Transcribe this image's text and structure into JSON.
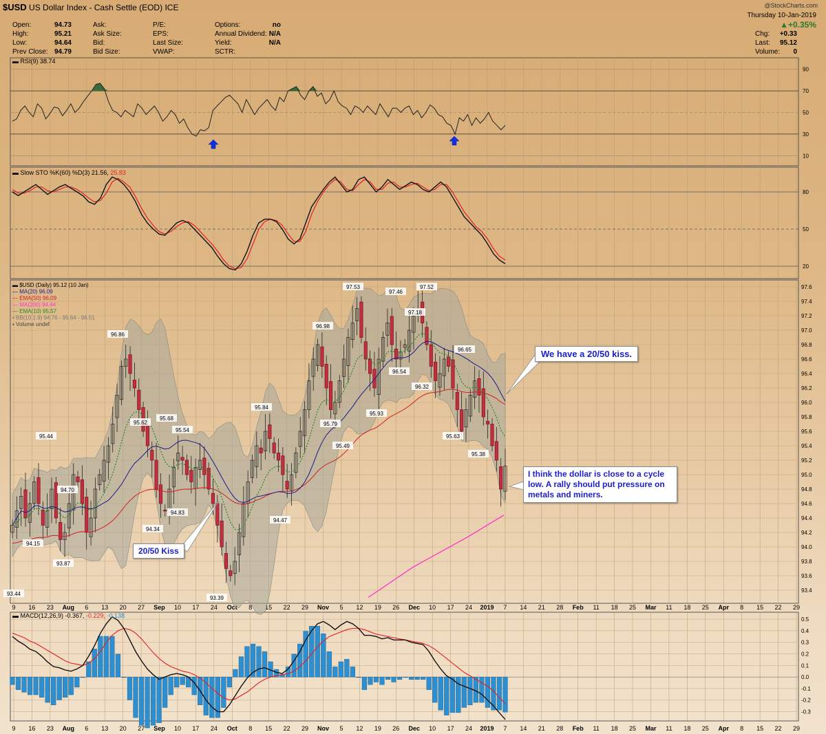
{
  "header": {
    "symbol": "$USD",
    "name": "US Dollar Index - Cash Settle (EOD)",
    "exchange": "ICE",
    "date": "Thursday  10-Jan-2019",
    "watermark": "@StockCharts.com",
    "change_pct": "▲+0.35%",
    "quote": [
      {
        "label": "Open:",
        "value": "94.73"
      },
      {
        "label": "High:",
        "value": "95.21"
      },
      {
        "label": "Low:",
        "value": "94.64"
      },
      {
        "label": "Prev Close:",
        "value": "94.79"
      }
    ],
    "col2": [
      "Ask:",
      "Ask Size:",
      "Bid:",
      "Bid Size:"
    ],
    "col3": [
      "P/E:",
      "EPS:",
      "Last Size:",
      "VWAP:"
    ],
    "col4": [
      {
        "label": "Options:",
        "value": "no"
      },
      {
        "label": "Annual Dividend:",
        "value": "N/A"
      },
      {
        "label": "Yield:",
        "value": "N/A"
      },
      {
        "label": "SCTR:",
        "value": ""
      }
    ],
    "right": [
      {
        "label": "Chg:",
        "value": "+0.33"
      },
      {
        "label": "Last:",
        "value": "95.12"
      },
      {
        "label": "Volume:",
        "value": "0"
      }
    ]
  },
  "rsi": {
    "legend": "RSI(9) 38.74",
    "ticks": [
      "90",
      "70",
      "50",
      "30",
      "10"
    ]
  },
  "sto": {
    "legend_main": "Slow STO %K(60) %D(3) 21.56,",
    "legend_red": "25.83",
    "ticks": [
      "80",
      "50",
      "20"
    ]
  },
  "price": {
    "legend": [
      {
        "text": "$USD (Daily) 95.12 (10 Jan)",
        "color": "#000000"
      },
      {
        "text": "MA(20) 96.09",
        "color": "#1a1a8a"
      },
      {
        "text": "EMA(50) 96.09",
        "color": "#cc2222"
      },
      {
        "text": "MA(200) 94.44",
        "color": "#ff33cc"
      },
      {
        "text": "EMA(10) 95.57",
        "color": "#228822"
      },
      {
        "text": "BB(10,1.9) 94.76 - 95.64 - 96.51",
        "color": "#777777"
      },
      {
        "text": "Volume undef",
        "color": "#444444"
      }
    ],
    "ticks": [
      "97.6",
      "97.4",
      "97.2",
      "97.0",
      "96.8",
      "96.6",
      "96.4",
      "96.2",
      "96.0",
      "95.8",
      "95.6",
      "95.4",
      "95.2",
      "95.0",
      "94.8",
      "94.6",
      "94.4",
      "94.2",
      "94.0",
      "93.8",
      "93.6",
      "93.4"
    ],
    "labels": [
      "93.44",
      "94.15",
      "93.87",
      "94.70",
      "95.44",
      "96.86",
      "95.62",
      "94.34",
      "95.68",
      "94.83",
      "95.54",
      "93.39",
      "95.84",
      "94.47",
      "96.98",
      "95.79",
      "95.49",
      "97.53",
      "95.93",
      "97.46",
      "96.54",
      "97.18",
      "97.52",
      "96.32",
      "95.63",
      "96.65",
      "95.38"
    ]
  },
  "macd": {
    "legend_main": "MACD(12,26,9) -0.367,",
    "legend_red": "-0.229,",
    "legend_blue": "-0.138",
    "ticks": [
      "0.5",
      "0.4",
      "0.3",
      "0.2",
      "0.1",
      "0.0",
      "-0.1",
      "-0.2",
      "-0.3"
    ]
  },
  "xaxis": [
    "9",
    "16",
    "23",
    "Aug",
    "6",
    "13",
    "20",
    "27",
    "Sep",
    "10",
    "17",
    "24",
    "Oct",
    "8",
    "15",
    "22",
    "29",
    "Nov",
    "5",
    "12",
    "19",
    "26",
    "Dec",
    "10",
    "17",
    "24",
    "2019",
    "7",
    "14",
    "21",
    "28",
    "Feb",
    "11",
    "18",
    "25",
    "Mar",
    "11",
    "18",
    "25",
    "Apr",
    "8",
    "15",
    "22",
    "29"
  ],
  "annotations": {
    "kiss_label": "20/50 Kiss",
    "kiss_2050": "We have a 20/50 kiss.",
    "cycle_note": "I think the dollar is close to a cycle low. A rally should put pressure on metals and miners."
  },
  "colors": {
    "ma20": "#1a1a8a",
    "ema50": "#cc2222",
    "ma200": "#ff33cc",
    "ema10": "#228822",
    "bb_fill": "#a8a89a",
    "down_candle": "#c23040",
    "rsi_fill": "#3a6a3a",
    "arrow": "#1030e0",
    "macd_hist": "#2d8fd0",
    "annotation_text": "#1c20c8"
  },
  "chart_data": [
    {
      "type": "line",
      "name": "RSI(9)",
      "y_ticks": [
        90,
        70,
        50,
        30,
        10
      ],
      "ylim": [
        0,
        100
      ],
      "values": [
        42,
        44,
        52,
        56,
        50,
        46,
        58,
        54,
        44,
        49,
        55,
        54,
        47,
        52,
        58,
        50,
        54,
        60,
        65,
        70,
        76,
        77,
        72,
        60,
        52,
        50,
        46,
        52,
        49,
        46,
        58,
        54,
        48,
        52,
        56,
        50,
        42,
        46,
        52,
        48,
        40,
        44,
        36,
        30,
        28,
        34,
        33,
        36,
        52,
        56,
        60,
        64,
        66,
        62,
        58,
        50,
        62,
        55,
        48,
        54,
        58,
        62,
        56,
        52,
        64,
        60,
        70,
        72,
        74,
        66,
        62,
        70,
        74,
        65,
        68,
        58,
        62,
        70,
        60,
        56,
        54,
        48,
        56,
        54,
        50,
        56,
        52,
        48,
        58,
        52,
        46,
        54,
        54,
        50,
        54,
        56,
        48,
        52,
        45,
        50,
        57,
        54,
        48,
        46,
        40,
        38,
        30,
        45,
        42,
        48,
        38,
        45,
        40,
        44,
        50,
        42,
        38,
        34,
        38
      ]
    },
    {
      "type": "line",
      "name": "Slow STO %K(60) %D(3)",
      "y_ticks": [
        80,
        50,
        20
      ],
      "ylim": [
        10,
        100
      ],
      "series": [
        {
          "name": "%K",
          "values": [
            80,
            77,
            80,
            83,
            86,
            82,
            78,
            81,
            84,
            86,
            83,
            80,
            77,
            72,
            70,
            75,
            86,
            92,
            90,
            86,
            80,
            72,
            62,
            55,
            50,
            46,
            45,
            50,
            55,
            57,
            55,
            50,
            45,
            40,
            35,
            28,
            22,
            18,
            17,
            22,
            32,
            45,
            55,
            58,
            58,
            56,
            50,
            42,
            38,
            42,
            55,
            68,
            75,
            82,
            88,
            92,
            86,
            80,
            82,
            90,
            92,
            86,
            80,
            84,
            90,
            86,
            82,
            85,
            88,
            86,
            82,
            80,
            84,
            88,
            84,
            76,
            68,
            60,
            55,
            50,
            45,
            38,
            30,
            25,
            22
          ]
        },
        {
          "name": "%D",
          "values": [
            82,
            79,
            79,
            81,
            84,
            84,
            81,
            80,
            82,
            84,
            84,
            82,
            79,
            75,
            72,
            73,
            79,
            88,
            91,
            88,
            84,
            76,
            67,
            59,
            53,
            48,
            46,
            48,
            52,
            55,
            56,
            53,
            48,
            43,
            38,
            32,
            25,
            20,
            18,
            19,
            26,
            38,
            50,
            56,
            58,
            57,
            53,
            46,
            40,
            40,
            48,
            62,
            72,
            80,
            86,
            90,
            88,
            82,
            81,
            86,
            90,
            88,
            82,
            82,
            87,
            88,
            84,
            84,
            86,
            87,
            84,
            81,
            82,
            86,
            86,
            80,
            72,
            64,
            58,
            52,
            48,
            42,
            34,
            28,
            25
          ]
        }
      ]
    },
    {
      "type": "candlestick",
      "name": "$USD (Daily)",
      "ylim": [
        93.3,
        97.7
      ],
      "y_ticks": [
        97.6,
        97.4,
        97.2,
        97.0,
        96.8,
        96.6,
        96.4,
        96.2,
        96.0,
        95.8,
        95.6,
        95.4,
        95.2,
        95.0,
        94.8,
        94.6,
        94.4,
        94.2,
        94.0,
        93.8,
        93.6,
        93.4
      ],
      "start": "2018-07-09",
      "end": "2019-01-10",
      "annotated_values": [
        93.44,
        94.15,
        93.87,
        94.7,
        95.44,
        96.86,
        95.62,
        94.34,
        95.68,
        94.83,
        95.54,
        93.39,
        95.84,
        94.47,
        96.98,
        95.79,
        95.49,
        97.53,
        95.93,
        97.46,
        96.54,
        97.18,
        97.52,
        96.32,
        95.63,
        96.65,
        95.38
      ],
      "close": [
        94.3,
        94.5,
        94.7,
        94.4,
        94.6,
        94.9,
        94.6,
        94.3,
        94.5,
        94.8,
        94.4,
        94.1,
        94.2,
        94.6,
        95.0,
        94.9,
        94.6,
        94.2,
        94.4,
        94.8,
        95.0,
        95.2,
        95.4,
        95.7,
        96.1,
        96.5,
        96.6,
        96.4,
        96.2,
        95.9,
        95.6,
        95.4,
        95.2,
        94.8,
        94.6,
        94.5,
        94.8,
        95.1,
        95.3,
        95.2,
        95.0,
        94.9,
        95.1,
        95.2,
        95.0,
        94.8,
        94.6,
        94.3,
        94.0,
        93.7,
        93.6,
        93.8,
        94.2,
        94.6,
        94.9,
        95.2,
        95.4,
        95.3,
        95.6,
        95.5,
        95.3,
        95.2,
        95.0,
        94.8,
        95.0,
        95.3,
        95.6,
        95.9,
        96.3,
        96.6,
        96.8,
        96.5,
        96.2,
        95.9,
        96.0,
        96.3,
        96.6,
        96.9,
        97.1,
        97.3,
        96.9,
        96.6,
        96.4,
        96.2,
        96.6,
        96.9,
        97.1,
        96.8,
        96.6,
        96.7,
        96.8,
        97.0,
        97.2,
        97.3,
        97.1,
        96.8,
        96.5,
        96.3,
        96.4,
        96.6,
        96.5,
        96.2,
        95.9,
        95.6,
        95.9,
        96.1,
        96.3,
        96.1,
        95.8,
        95.7,
        95.4,
        95.2,
        94.8,
        95.12
      ],
      "series": [
        {
          "name": "MA(20)",
          "last": 96.09
        },
        {
          "name": "EMA(50)",
          "last": 96.09
        },
        {
          "name": "MA(200)",
          "last": 94.44
        },
        {
          "name": "EMA(10)",
          "last": 95.57
        },
        {
          "name": "BB(10,1.9)",
          "last": [
            94.76,
            95.64,
            96.51
          ]
        }
      ]
    },
    {
      "type": "line",
      "name": "MACD(12,26,9)",
      "y_ticks": [
        0.5,
        0.4,
        0.3,
        0.2,
        0.1,
        0.0,
        -0.1,
        -0.2,
        -0.3
      ],
      "ylim": [
        -0.38,
        0.56
      ],
      "series": [
        {
          "name": "MACD",
          "values": [
            0.35,
            0.31,
            0.28,
            0.24,
            0.22,
            0.18,
            0.13,
            0.09,
            0.08,
            0.06,
            0.05,
            0.07,
            0.1,
            0.18,
            0.27,
            0.38,
            0.46,
            0.52,
            0.49,
            0.42,
            0.32,
            0.22,
            0.14,
            0.07,
            0.02,
            -0.02,
            0.0,
            0.02,
            0.03,
            0.02,
            0.0,
            -0.05,
            -0.12,
            -0.2,
            -0.26,
            -0.3,
            -0.3,
            -0.24,
            -0.16,
            -0.08,
            -0.01,
            0.04,
            0.07,
            0.08,
            0.06,
            0.04,
            0.03,
            0.07,
            0.14,
            0.22,
            0.32,
            0.4,
            0.46,
            0.48,
            0.45,
            0.41,
            0.45,
            0.48,
            0.46,
            0.42,
            0.36,
            0.36,
            0.35,
            0.33,
            0.34,
            0.32,
            0.32,
            0.32,
            0.3,
            0.29,
            0.28,
            0.22,
            0.14,
            0.07,
            0.01,
            -0.02,
            -0.06,
            -0.08,
            -0.1,
            -0.12,
            -0.15,
            -0.2,
            -0.25,
            -0.31,
            -0.367
          ]
        },
        {
          "name": "Signal",
          "values": [
            0.38,
            0.36,
            0.34,
            0.31,
            0.29,
            0.26,
            0.23,
            0.2,
            0.17,
            0.14,
            0.12,
            0.11,
            0.1,
            0.12,
            0.16,
            0.22,
            0.3,
            0.36,
            0.4,
            0.42,
            0.41,
            0.38,
            0.33,
            0.27,
            0.21,
            0.16,
            0.12,
            0.09,
            0.07,
            0.05,
            0.04,
            0.02,
            -0.01,
            -0.05,
            -0.1,
            -0.14,
            -0.18,
            -0.2,
            -0.19,
            -0.16,
            -0.13,
            -0.09,
            -0.05,
            -0.02,
            0.0,
            0.01,
            0.02,
            0.03,
            0.05,
            0.09,
            0.14,
            0.2,
            0.26,
            0.31,
            0.35,
            0.37,
            0.39,
            0.41,
            0.42,
            0.42,
            0.41,
            0.39,
            0.37,
            0.36,
            0.35,
            0.34,
            0.33,
            0.32,
            0.31,
            0.3,
            0.29,
            0.27,
            0.24,
            0.2,
            0.16,
            0.12,
            0.08,
            0.04,
            0.01,
            -0.02,
            -0.05,
            -0.08,
            -0.12,
            -0.18,
            -0.229
          ]
        }
      ]
    }
  ]
}
